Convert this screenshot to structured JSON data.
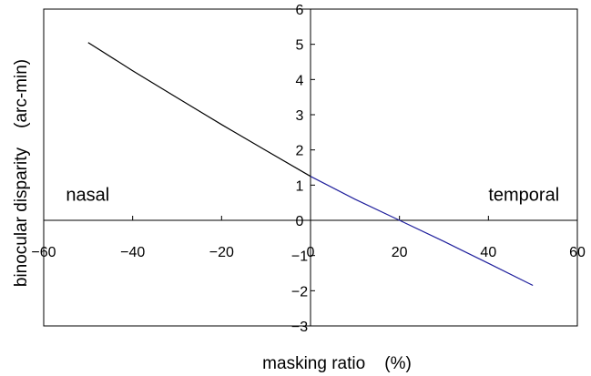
{
  "chart_data": {
    "type": "line",
    "title": "",
    "xlabel": "masking ratio    (%)",
    "ylabel": "binocular disparity    (arc-min)",
    "xlim": [
      -60,
      60
    ],
    "ylim": [
      -3,
      6
    ],
    "x_ticks": [
      -60,
      -40,
      -20,
      0,
      20,
      40,
      60
    ],
    "x_tick_labels": [
      "−60",
      "−40",
      "−20",
      "0",
      "20",
      "40",
      "60"
    ],
    "y_ticks": [
      -3,
      -2,
      -1,
      0,
      1,
      2,
      3,
      4,
      5,
      6
    ],
    "y_tick_labels": [
      "−3",
      "−2",
      "−1",
      "0",
      "1",
      "2",
      "3",
      "4",
      "5",
      "6"
    ],
    "grid": false,
    "legend": "none",
    "annotations": [
      {
        "text": "nasal",
        "x": -55,
        "y": 0.55
      },
      {
        "text": "temporal",
        "x": 40,
        "y": 0.55
      }
    ],
    "series": [
      {
        "color": "#000000",
        "x": [
          -50,
          -40,
          -30,
          -20,
          -10,
          0
        ],
        "y": [
          5.05,
          4.25,
          3.48,
          2.72,
          1.98,
          1.25
        ]
      },
      {
        "color": "#1f1f9c",
        "x": [
          0,
          10,
          20,
          30,
          40,
          50
        ],
        "y": [
          1.25,
          0.6,
          0.0,
          -0.6,
          -1.22,
          -1.85
        ]
      }
    ]
  }
}
